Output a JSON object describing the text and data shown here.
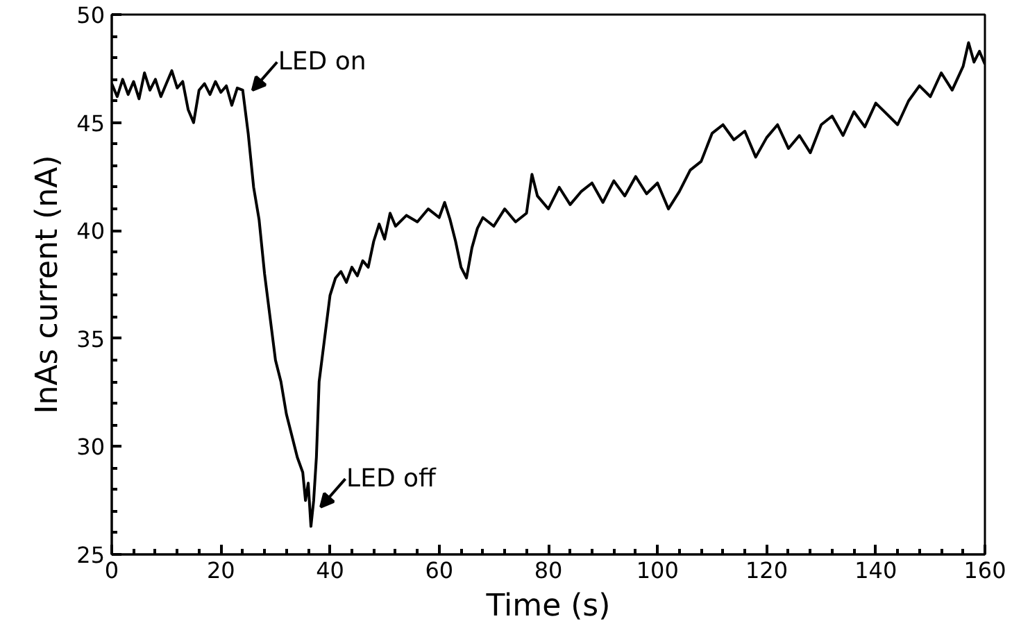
{
  "chart_data": {
    "type": "line",
    "xlabel": "Time (s)",
    "ylabel": "InAs current (nA)",
    "xlim": [
      0,
      160
    ],
    "ylim": [
      25,
      50
    ],
    "xticks": [
      0,
      20,
      40,
      60,
      80,
      100,
      120,
      140,
      160
    ],
    "yticks": [
      25,
      30,
      35,
      40,
      45,
      50
    ],
    "grid": false,
    "marker": "none",
    "line_style": "solid",
    "series": [
      {
        "color": "#000000",
        "x": [
          0,
          1,
          2,
          3,
          4,
          5,
          6,
          7,
          8,
          9,
          10,
          11,
          12,
          13,
          14,
          15,
          16,
          17,
          18,
          19,
          20,
          21,
          22,
          23,
          24,
          25,
          26,
          27,
          28,
          29,
          30,
          31,
          32,
          33,
          34,
          35,
          35.5,
          36,
          36.5,
          37,
          37.5,
          38,
          39,
          40,
          41,
          42,
          43,
          44,
          45,
          46,
          47,
          48,
          49,
          50,
          51,
          52,
          54,
          56,
          58,
          60,
          61,
          62,
          63,
          64,
          65,
          66,
          67,
          68,
          70,
          72,
          74,
          76,
          77,
          78,
          80,
          82,
          84,
          86,
          88,
          90,
          92,
          94,
          96,
          98,
          100,
          102,
          104,
          106,
          108,
          110,
          112,
          114,
          116,
          118,
          120,
          122,
          124,
          126,
          128,
          130,
          132,
          134,
          136,
          138,
          140,
          142,
          144,
          146,
          148,
          150,
          152,
          154,
          156,
          157,
          158,
          159,
          160
        ],
        "values": [
          46.8,
          46.2,
          47.0,
          46.3,
          46.9,
          46.1,
          47.3,
          46.5,
          47.0,
          46.2,
          46.8,
          47.4,
          46.6,
          46.9,
          45.6,
          45.0,
          46.5,
          46.8,
          46.3,
          46.9,
          46.4,
          46.7,
          45.8,
          46.6,
          46.5,
          44.5,
          42.0,
          40.5,
          38.0,
          36.0,
          34.0,
          33.0,
          31.5,
          30.5,
          29.5,
          28.8,
          27.5,
          28.3,
          26.3,
          27.5,
          29.5,
          33.0,
          35.0,
          37.0,
          37.8,
          38.1,
          37.6,
          38.3,
          37.9,
          38.6,
          38.3,
          39.5,
          40.3,
          39.6,
          40.8,
          40.2,
          40.7,
          40.4,
          41.0,
          40.6,
          41.3,
          40.5,
          39.5,
          38.3,
          37.8,
          39.2,
          40.1,
          40.6,
          40.2,
          41.0,
          40.4,
          40.8,
          42.6,
          41.6,
          41.0,
          42.0,
          41.2,
          41.8,
          42.2,
          41.3,
          42.3,
          41.6,
          42.5,
          41.7,
          42.2,
          41.0,
          41.8,
          42.8,
          43.2,
          44.5,
          44.9,
          44.2,
          44.6,
          43.4,
          44.3,
          44.9,
          43.8,
          44.4,
          43.6,
          44.9,
          45.3,
          44.4,
          45.5,
          44.8,
          45.9,
          45.4,
          44.9,
          46.0,
          46.7,
          46.2,
          47.3,
          46.5,
          47.6,
          48.7,
          47.8,
          48.3,
          47.7
        ]
      }
    ],
    "annotations": [
      {
        "text": "LED on",
        "x": 25,
        "y": 46.3
      },
      {
        "text": "LED off",
        "x": 37.5,
        "y": 27.0
      }
    ]
  }
}
